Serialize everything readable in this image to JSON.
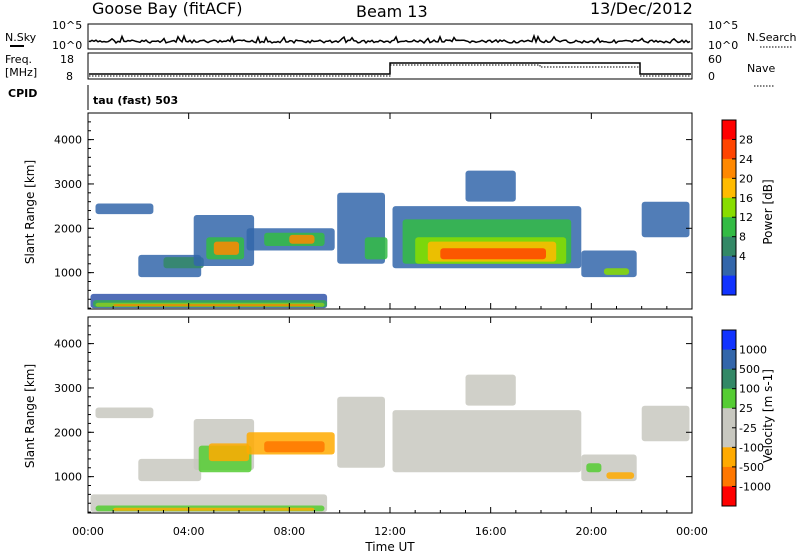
{
  "header": {
    "station": "Goose Bay (fitACF)",
    "beam": "Beam 13",
    "date": "13/Dec/2012"
  },
  "top_strips": {
    "nsky_label": "N.Sky",
    "nsky_ticks": [
      "10^5",
      "10^0"
    ],
    "nsearch_label": "N.Search",
    "nsearch_ticks": [
      "10^5",
      "10^0"
    ],
    "freq_label": "Freq.",
    "freq_unit": "[MHz]",
    "freq_ticks": [
      "18",
      "8"
    ],
    "nave_label": "Nave",
    "nave_ticks": [
      "60",
      "0"
    ],
    "cpid_label": "CPID",
    "cpid_value": "tau (fast) 503"
  },
  "chart_data": [
    {
      "type": "heatmap",
      "name": "power-panel",
      "ylabel": "Slant Range [km]",
      "ylim": [
        180,
        4600
      ],
      "yticks": [
        1000,
        2000,
        3000,
        4000
      ],
      "colorbar_label": "Power [dB]",
      "colorbar_ticks": [
        "28",
        "24",
        "20",
        "16",
        "12",
        "8",
        "4"
      ],
      "colorbar_colors": [
        "#ff0000",
        "#ff4400",
        "#ff8800",
        "#ffbb00",
        "#88dd00",
        "#33bb44",
        "#338866",
        "#3366aa",
        "#1133ff"
      ]
    },
    {
      "type": "heatmap",
      "name": "velocity-panel",
      "ylabel": "Slant Range [km]",
      "ylim": [
        180,
        4600
      ],
      "yticks": [
        1000,
        2000,
        3000,
        4000
      ],
      "colorbar_label": "Velocity [m s-1]",
      "colorbar_ticks": [
        "1000",
        "500",
        "100",
        "25",
        "-25",
        "-100",
        "-500",
        "-1000"
      ],
      "colorbar_colors": [
        "#1133ff",
        "#3366aa",
        "#338866",
        "#55cc33",
        "#c8c8c0",
        "#c8c8c0",
        "#ffaa00",
        "#ff7700",
        "#ff0000"
      ]
    }
  ],
  "xaxis": {
    "label": "Time UT",
    "ticks": [
      "00:00",
      "04:00",
      "08:00",
      "12:00",
      "16:00",
      "20:00",
      "00:00"
    ]
  }
}
